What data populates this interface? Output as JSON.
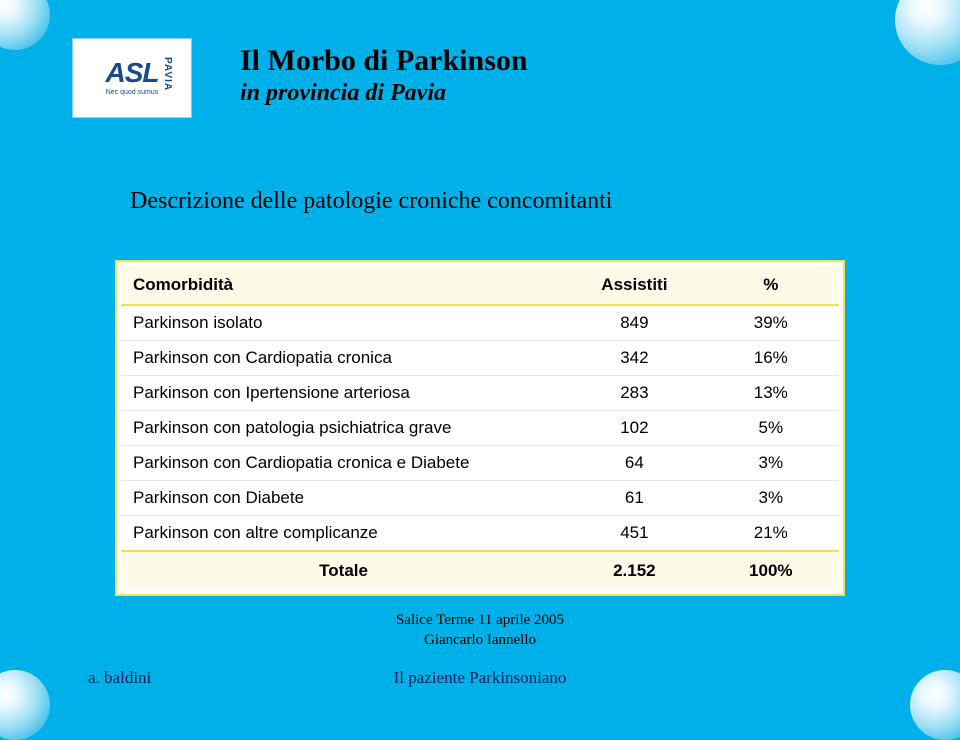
{
  "colors": {
    "page_bg": "#00b0e8",
    "accent_yellow": "#f5e050",
    "header_bg": "#fdfbe8",
    "footer_text": "#002060",
    "logo_text": "#1a4a8a"
  },
  "logo": {
    "text": "ASL",
    "region": "PAVIA",
    "motto": "Nec quod sumus"
  },
  "title": {
    "main": "Il Morbo di Parkinson",
    "sub": "in provincia di Pavia"
  },
  "description": "Descrizione delle patologie croniche concomitanti",
  "table": {
    "type": "table",
    "background_color": "#ffffff",
    "border_color": "#f5e050",
    "header_bg": "#fdfbe8",
    "font_family": "Arial",
    "font_size": 17,
    "columns": [
      "Comorbidità",
      "Assistiti",
      "%"
    ],
    "column_align": [
      "left",
      "center",
      "center"
    ],
    "rows": [
      {
        "label": "Parkinson isolato",
        "assistiti": "849",
        "pct": "39%"
      },
      {
        "label": "Parkinson con Cardiopatia cronica",
        "assistiti": "342",
        "pct": "16%"
      },
      {
        "label": "Parkinson con Ipertensione arteriosa",
        "assistiti": "283",
        "pct": "13%"
      },
      {
        "label": "Parkinson con patologia psichiatrica grave",
        "assistiti": "102",
        "pct": "5%"
      },
      {
        "label": "Parkinson con Cardiopatia cronica e Diabete",
        "assistiti": "64",
        "pct": "3%"
      },
      {
        "label": "Parkinson con Diabete",
        "assistiti": "61",
        "pct": "3%"
      },
      {
        "label": "Parkinson con altre complicanze",
        "assistiti": "451",
        "pct": "21%"
      }
    ],
    "total": {
      "label": "Totale",
      "assistiti": "2.152",
      "pct": "100%"
    }
  },
  "footer": {
    "line1": "Salice Terme 11 aprile 2005",
    "line2": "Giancarlo Iannello"
  },
  "bottom": {
    "left": "a. baldini",
    "center": "Il paziente Parkinsoniano"
  }
}
